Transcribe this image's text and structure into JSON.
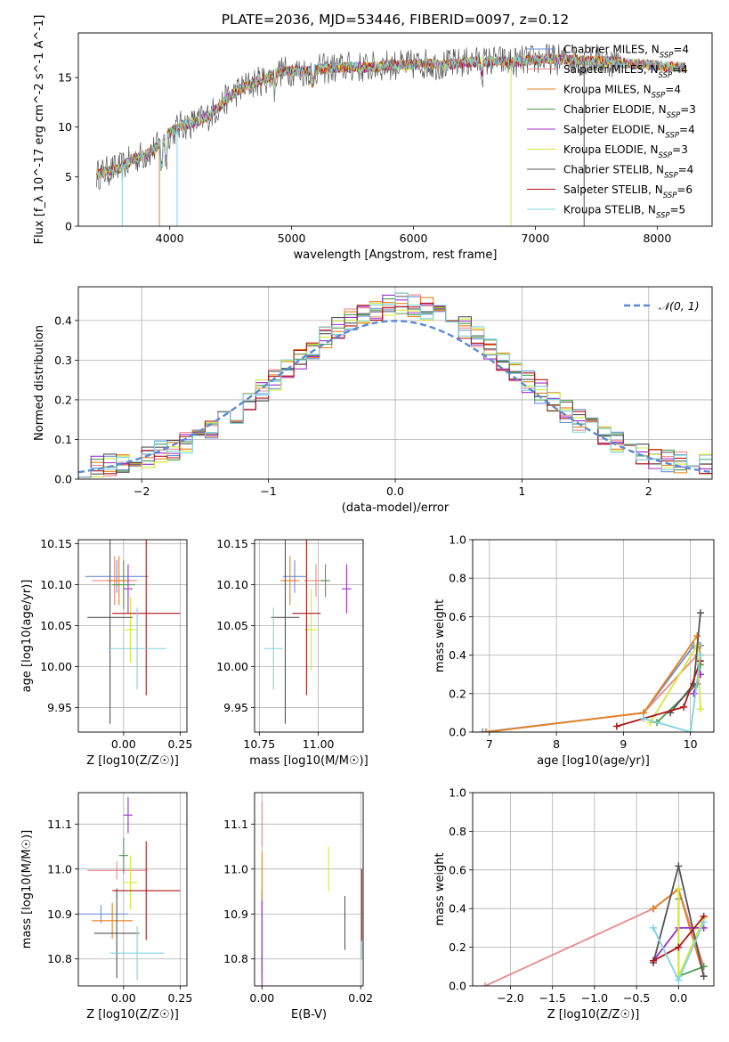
{
  "figure": {
    "title": "PLATE=2036, MJD=53446, FIBERID=0097, z=0.12"
  },
  "legend_entries": [
    {
      "imf": "Chabrier",
      "lib": "MILES",
      "nssp": 4,
      "color": "#6a8fd4"
    },
    {
      "imf": "Salpeter",
      "lib": "MILES",
      "nssp": 4,
      "color": "#e98b8b"
    },
    {
      "imf": "Kroupa",
      "lib": "MILES",
      "nssp": 4,
      "color": "#e6821e"
    },
    {
      "imf": "Chabrier",
      "lib": "ELODIE",
      "nssp": 3,
      "color": "#4e9a4e"
    },
    {
      "imf": "Salpeter",
      "lib": "ELODIE",
      "nssp": 4,
      "color": "#9b30c8"
    },
    {
      "imf": "Kroupa",
      "lib": "ELODIE",
      "nssp": 3,
      "color": "#d4e83c"
    },
    {
      "imf": "Chabrier",
      "lib": "STELIB",
      "nssp": 4,
      "color": "#555555"
    },
    {
      "imf": "Salpeter",
      "lib": "STELIB",
      "nssp": 6,
      "color": "#b01515"
    },
    {
      "imf": "Kroupa",
      "lib": "STELIB",
      "nssp": 5,
      "color": "#7fd4e0"
    }
  ],
  "chart_data": [
    {
      "id": "spectrum",
      "type": "line",
      "xlabel": "wavelength [Angstrom, rest frame]",
      "ylabel": "Flux [f_λ 10^-17 erg cm^-2 s^-1 A^-1]",
      "xlim": [
        3250,
        8450
      ],
      "ylim": [
        0,
        19.5
      ],
      "xticks": [
        4000,
        5000,
        6000,
        7000,
        8000
      ],
      "yticks": [
        0,
        5,
        10,
        15
      ],
      "grid": false,
      "legend_position": "upper right",
      "series": [
        {
          "name": "spectrum",
          "x": [
            3400,
            3500,
            3600,
            3700,
            3800,
            3900,
            4000,
            4100,
            4200,
            4300,
            4400,
            4500,
            4600,
            4700,
            4800,
            4900,
            5000,
            5100,
            5200,
            5300,
            5400,
            5500,
            5600,
            5700,
            5800,
            5900,
            6000,
            6100,
            6200,
            6300,
            6400,
            6500,
            6600,
            6700,
            6800,
            6900,
            7000,
            7100,
            7200,
            7300,
            7400,
            7500,
            7600,
            7700,
            7800,
            7900,
            8000,
            8100,
            8200
          ],
          "y": [
            5.2,
            5.6,
            5.9,
            6.8,
            7.2,
            8.0,
            9.4,
            10.2,
            10.4,
            11.0,
            12.0,
            13.2,
            14.0,
            14.5,
            14.9,
            15.6,
            15.7,
            15.6,
            15.8,
            15.9,
            16.0,
            16.1,
            16.0,
            16.1,
            16.3,
            16.2,
            16.3,
            16.4,
            16.3,
            16.3,
            16.5,
            16.6,
            16.6,
            16.7,
            16.5,
            16.7,
            16.8,
            16.9,
            16.8,
            16.8,
            16.7,
            16.7,
            16.6,
            16.5,
            16.4,
            16.3,
            16.2,
            16.1,
            16.0
          ]
        }
      ]
    },
    {
      "id": "residuals",
      "type": "line",
      "xlabel": "(data-model)/error",
      "ylabel": "Normed distribution",
      "xlim": [
        -2.5,
        2.5
      ],
      "ylim": [
        0,
        0.485
      ],
      "xticks": [
        -2,
        -1,
        0,
        1,
        2
      ],
      "yticks": [
        0.0,
        0.1,
        0.2,
        0.3,
        0.4
      ],
      "grid": true,
      "legend_position": "upper right",
      "normal_label": "𝒩(0, 1)",
      "normal_color": "#5a8ad4",
      "bin_width": 0.1,
      "x_start": -2.5
    },
    {
      "id": "age_vs_Z",
      "type": "scatter",
      "xlabel": "Z [log10(Z/Z☉)]",
      "ylabel": "age [log10(age/yr)]",
      "xlim": [
        -0.2,
        0.28
      ],
      "ylim": [
        9.92,
        10.155
      ],
      "xticks": [
        -0.0,
        0.25
      ],
      "yticks": [
        9.95,
        10.0,
        10.05,
        10.1,
        10.15
      ],
      "grid": true,
      "points": [
        {
          "x": -0.03,
          "y": 10.11,
          "xerr": 0.14,
          "yerr": 0.02
        },
        {
          "x": -0.04,
          "y": 10.105,
          "xerr": 0.1,
          "yerr": 0.03
        },
        {
          "x": -0.02,
          "y": 10.105,
          "xerr": 0.05,
          "yerr": 0.03
        },
        {
          "x": 0.0,
          "y": 10.1,
          "xerr": 0.05,
          "yerr": 0.03
        },
        {
          "x": 0.02,
          "y": 10.095,
          "xerr": 0.02,
          "yerr": 0.03
        },
        {
          "x": 0.03,
          "y": 10.045,
          "xerr": 0.03,
          "yerr": 0.04
        },
        {
          "x": -0.06,
          "y": 10.06,
          "xerr": 0.1,
          "yerr": 0.13
        },
        {
          "x": 0.1,
          "y": 10.065,
          "xerr": 0.15,
          "yerr": 0.1
        },
        {
          "x": 0.06,
          "y": 10.022,
          "xerr": 0.13,
          "yerr": 0.05
        }
      ]
    },
    {
      "id": "age_vs_mass",
      "type": "scatter",
      "xlabel": "mass [log10(M/M☉)]",
      "ylabel": "",
      "xlim": [
        10.73,
        11.19
      ],
      "ylim": [
        9.92,
        10.155
      ],
      "xticks": [
        10.75,
        11.0
      ],
      "yticks": [
        9.95,
        10.0,
        10.05,
        10.1,
        10.15
      ],
      "grid": true,
      "points": [
        {
          "x": 10.9,
          "y": 10.11,
          "xerr": 0.05,
          "yerr": 0.02
        },
        {
          "x": 10.99,
          "y": 10.105,
          "xerr": 0.05,
          "yerr": 0.02
        },
        {
          "x": 10.88,
          "y": 10.105,
          "xerr": 0.04,
          "yerr": 0.03
        },
        {
          "x": 11.03,
          "y": 10.105,
          "xerr": 0.02,
          "yerr": 0.02
        },
        {
          "x": 11.12,
          "y": 10.095,
          "xerr": 0.02,
          "yerr": 0.03
        },
        {
          "x": 10.97,
          "y": 10.045,
          "xerr": 0.03,
          "yerr": 0.05
        },
        {
          "x": 10.86,
          "y": 10.06,
          "xerr": 0.06,
          "yerr": 0.13
        },
        {
          "x": 10.95,
          "y": 10.065,
          "xerr": 0.06,
          "yerr": 0.1
        },
        {
          "x": 10.81,
          "y": 10.022,
          "xerr": 0.04,
          "yerr": 0.05
        }
      ]
    },
    {
      "id": "massweight_vs_age",
      "type": "line",
      "xlabel": "age [log10(age/yr)]",
      "ylabel": "mass weight",
      "xlim": [
        6.75,
        10.35
      ],
      "ylim": [
        0,
        1.0
      ],
      "xticks": [
        7,
        8,
        9,
        10
      ],
      "yticks": [
        0.0,
        0.2,
        0.4,
        0.6,
        0.8,
        1.0
      ],
      "grid": true,
      "series": [
        {
          "x": [
            6.9,
            9.3,
            10.05,
            10.15
          ],
          "y": [
            0.0,
            0.1,
            0.45,
            0.45
          ]
        },
        {
          "x": [
            6.95,
            9.3,
            10.1,
            10.15
          ],
          "y": [
            0.0,
            0.1,
            0.4,
            0.3
          ]
        },
        {
          "x": [
            6.95,
            9.3,
            10.1,
            10.15
          ],
          "y": [
            0.0,
            0.1,
            0.5,
            0.4
          ]
        },
        {
          "x": [
            9.5,
            10.1,
            10.15
          ],
          "y": [
            0.05,
            0.25,
            0.35
          ]
        },
        {
          "x": [
            10.05,
            10.1,
            10.15
          ],
          "y": [
            0.2,
            0.25,
            0.3
          ]
        },
        {
          "x": [
            9.4,
            10.1,
            10.15
          ],
          "y": [
            0.05,
            0.45,
            0.12
          ]
        },
        {
          "x": [
            9.7,
            10.05,
            10.15
          ],
          "y": [
            0.1,
            0.25,
            0.62
          ]
        },
        {
          "x": [
            8.9,
            9.9,
            10.15
          ],
          "y": [
            0.03,
            0.13,
            0.37
          ]
        },
        {
          "x": [
            9.3,
            10.0,
            10.15
          ],
          "y": [
            0.07,
            0.0,
            0.4
          ]
        }
      ]
    },
    {
      "id": "mass_vs_Z",
      "type": "scatter",
      "xlabel": "Z [log10(Z/Z☉)]",
      "ylabel": "mass [log10(M/M☉)]",
      "xlim": [
        -0.2,
        0.28
      ],
      "ylim": [
        10.74,
        11.17
      ],
      "xticks": [
        0.0,
        0.25
      ],
      "yticks": [
        10.8,
        10.9,
        11.0,
        11.1
      ],
      "grid": true,
      "points": [
        {
          "x": -0.1,
          "y": 10.9,
          "xerr": 0.12,
          "yerr": 0.02
        },
        {
          "x": -0.03,
          "y": 10.997,
          "xerr": 0.13,
          "yerr": 0.02
        },
        {
          "x": -0.05,
          "y": 10.885,
          "xerr": 0.09,
          "yerr": 0.04
        },
        {
          "x": 0.0,
          "y": 11.03,
          "xerr": 0.02,
          "yerr": 0.04
        },
        {
          "x": 0.02,
          "y": 11.12,
          "xerr": 0.02,
          "yerr": 0.04
        },
        {
          "x": 0.03,
          "y": 10.97,
          "xerr": 0.03,
          "yerr": 0.06
        },
        {
          "x": -0.03,
          "y": 10.857,
          "xerr": 0.1,
          "yerr": 0.1
        },
        {
          "x": 0.1,
          "y": 10.952,
          "xerr": 0.15,
          "yerr": 0.11
        },
        {
          "x": 0.06,
          "y": 10.813,
          "xerr": 0.12,
          "yerr": 0.06
        }
      ]
    },
    {
      "id": "mass_vs_EBV",
      "type": "scatter",
      "xlabel": "E(B-V)",
      "ylabel": "",
      "xlim": [
        -0.0015,
        0.0205
      ],
      "ylim": [
        10.74,
        11.17
      ],
      "xticks": [
        0.0,
        0.02
      ],
      "yticks": [
        10.8,
        10.9,
        11.0,
        11.1
      ],
      "grid": true,
      "points": [
        {
          "x": 0.0,
          "y": 10.86,
          "xerr": 0.0,
          "yerr": 0.09
        },
        {
          "x": 0.0,
          "y": 11.1,
          "xerr": 0.0,
          "yerr": 0.05
        },
        {
          "x": 0.0,
          "y": 10.98,
          "xerr": 0.0,
          "yerr": 0.06
        },
        {
          "x": 0.0,
          "y": 10.78,
          "xerr": 0.0,
          "yerr": 0.03
        },
        {
          "x": 0.0,
          "y": 10.83,
          "xerr": 0.0,
          "yerr": 0.1
        },
        {
          "x": 0.0135,
          "y": 11.0,
          "xerr": 0.0,
          "yerr": 0.05
        },
        {
          "x": 0.0168,
          "y": 10.88,
          "xerr": 0.0,
          "yerr": 0.06
        },
        {
          "x": 0.0202,
          "y": 10.92,
          "xerr": 0.0,
          "yerr": 0.08
        },
        {
          "x": 0.0202,
          "y": 10.82,
          "xerr": 0.0,
          "yerr": 0.02
        }
      ]
    },
    {
      "id": "massweight_vs_Z",
      "type": "line",
      "xlabel": "Z [log10(Z/Z☉)]",
      "ylabel": "mass weight",
      "xlim": [
        -2.45,
        0.42
      ],
      "ylim": [
        0,
        1.0
      ],
      "xticks": [
        -2.0,
        -1.5,
        -1.0,
        -0.5,
        0.0
      ],
      "yticks": [
        0.0,
        0.2,
        0.4,
        0.6,
        0.8,
        1.0
      ],
      "grid": true,
      "series": [
        {
          "x": [
            -0.3,
            0.0,
            0.3
          ],
          "y": [
            0.4,
            0.5,
            0.1
          ]
        },
        {
          "x": [
            -2.3,
            -0.3,
            0.0,
            0.3
          ],
          "y": [
            0.0,
            0.4,
            0.5,
            0.1
          ]
        },
        {
          "x": [
            -0.3,
            0.0,
            0.3
          ],
          "y": [
            0.4,
            0.5,
            0.05
          ]
        },
        {
          "x": [
            0.0,
            0.0,
            0.3
          ],
          "y": [
            0.45,
            0.05,
            0.1
          ]
        },
        {
          "x": [
            -0.3,
            0.0,
            0.3
          ],
          "y": [
            0.13,
            0.3,
            0.3
          ]
        },
        {
          "x": [
            0.0,
            0.0,
            0.3
          ],
          "y": [
            0.5,
            0.05,
            0.35
          ]
        },
        {
          "x": [
            -0.3,
            0.0,
            0.3
          ],
          "y": [
            0.12,
            0.62,
            0.05
          ]
        },
        {
          "x": [
            -0.3,
            0.0,
            0.3
          ],
          "y": [
            0.13,
            0.2,
            0.36
          ]
        },
        {
          "x": [
            -0.3,
            0.0,
            0.3
          ],
          "y": [
            0.3,
            0.03,
            0.33
          ]
        }
      ]
    }
  ]
}
